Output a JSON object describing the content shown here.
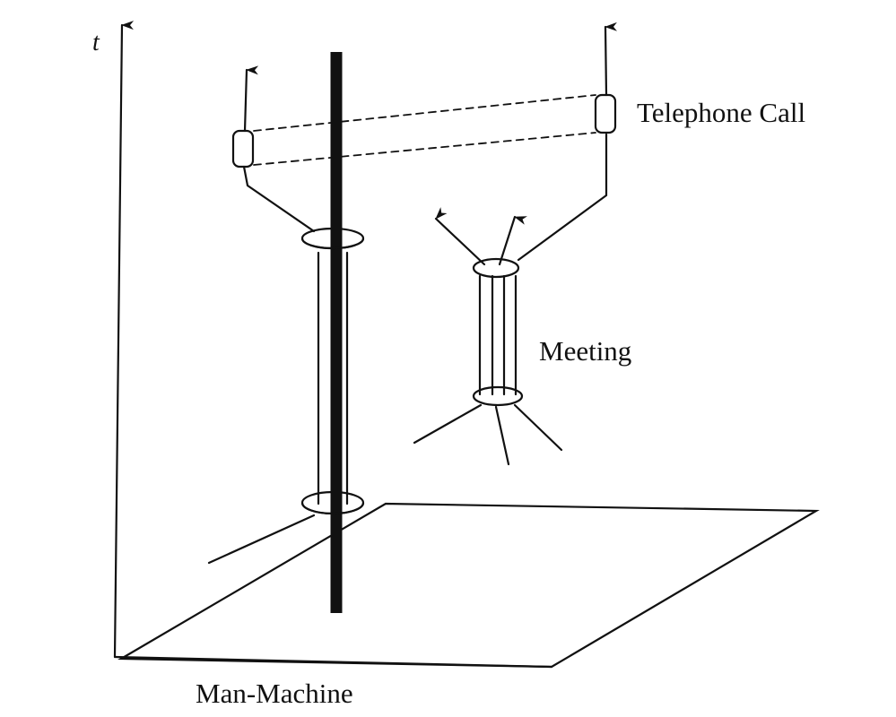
{
  "labels": {
    "time_axis": "t",
    "telephone_call": "Telephone Call",
    "meeting": "Meeting",
    "man_machine": "Man-Machine"
  },
  "colors": {
    "ink": "#111111",
    "background": "#ffffff"
  }
}
